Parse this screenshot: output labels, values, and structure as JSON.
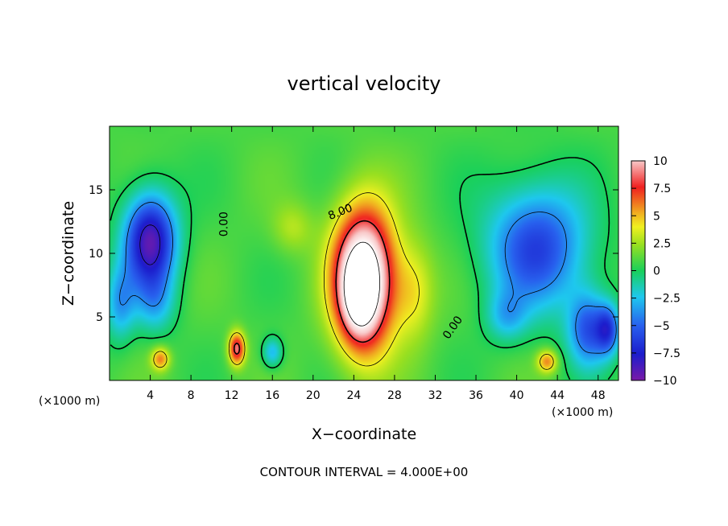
{
  "chart_data": {
    "type": "heatmap",
    "title": "vertical velocity",
    "xlabel": "X−coordinate",
    "ylabel": "Z−coordinate",
    "x_unit_left": "(×1000 m)",
    "x_unit_right": "(×1000 m)",
    "footer": "CONTOUR INTERVAL = 4.000E+00",
    "xlim": [
      0,
      50
    ],
    "ylim": [
      0,
      20
    ],
    "x_ticks": [
      4,
      8,
      12,
      16,
      20,
      24,
      28,
      32,
      36,
      40,
      44,
      48
    ],
    "y_ticks": [
      5,
      10,
      15
    ],
    "colorbar": {
      "range": [
        -10,
        10
      ],
      "ticks": [
        10,
        7.5,
        5,
        2.5,
        0,
        -2.5,
        -5,
        -7.5,
        -10
      ],
      "tick_labels": [
        "10",
        "7.5",
        "5",
        "2.5",
        "0",
        "−2.5",
        "−5",
        "−7.5",
        "−10"
      ]
    },
    "contour_labels": [
      {
        "text": "0.00",
        "x": 11.6,
        "z": 12.3,
        "angle": -90
      },
      {
        "text": "8.00",
        "x": 22.8,
        "z": 13.0,
        "angle": -22
      },
      {
        "text": "0.00",
        "x": 34.0,
        "z": 4.0,
        "angle": -55
      }
    ],
    "features": [
      {
        "name": "updraft core",
        "x": 25,
        "z": 8,
        "peak": 12
      },
      {
        "name": "updraft right flank",
        "x": 30,
        "z": 7,
        "peak": 6
      },
      {
        "name": "downdraft left",
        "x": 4,
        "z": 11,
        "peak": -9
      },
      {
        "name": "downdraft left lower",
        "x": 4,
        "z": 6,
        "peak": -5
      },
      {
        "name": "downdraft right",
        "x": 42,
        "z": 11,
        "peak": -6
      },
      {
        "name": "downdraft right lower",
        "x": 47,
        "z": 4,
        "peak": -7
      },
      {
        "name": "downdraft far right",
        "x": 49,
        "z": 4,
        "peak": -8
      },
      {
        "name": "small updraft",
        "x": 12.5,
        "z": 2.5,
        "peak": 7
      },
      {
        "name": "small updraft",
        "x": 5,
        "z": 1.7,
        "peak": 5
      },
      {
        "name": "small updraft",
        "x": 43,
        "z": 1.5,
        "peak": 5
      },
      {
        "name": "weak downdraft",
        "x": 16,
        "z": 2,
        "peak": -3
      }
    ],
    "grid": false,
    "legend": "right"
  }
}
